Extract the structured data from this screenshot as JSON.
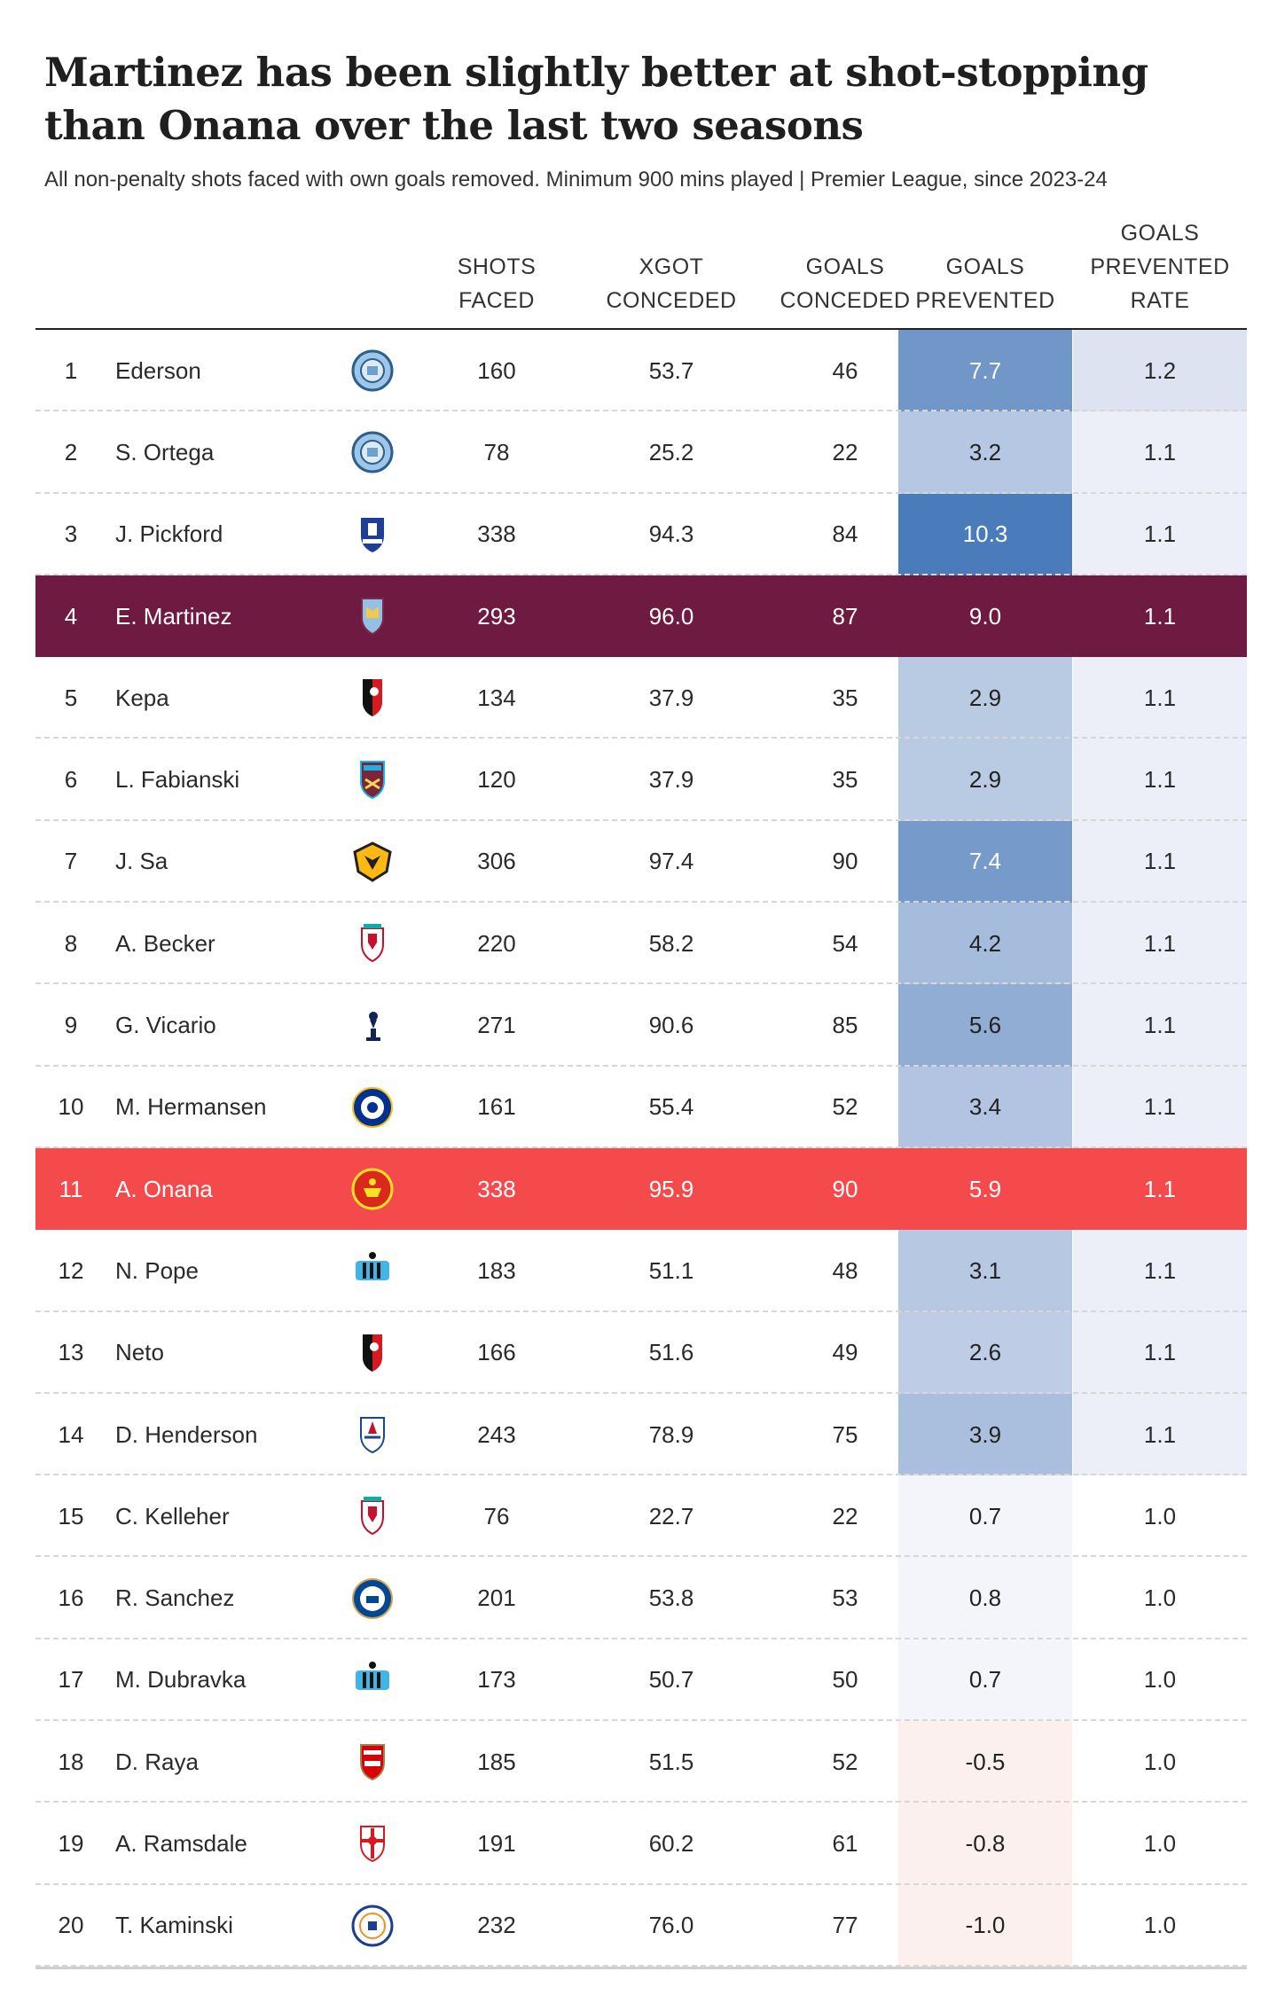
{
  "title": "Martinez has been slightly better at shot-stopping than Onana over the last two seasons",
  "subtitle": "All non-penalty shots faced with own goals removed. Minimum 900 mins played | Premier League, since 2023-24",
  "colors": {
    "martinez_highlight": "#6f1a40",
    "onana_highlight": "#f44a4c",
    "gp_positive_strong": "#4a7bba",
    "gp_negative_tint": "#fcf0ee",
    "rate_tint": "#e5e9f3"
  },
  "chart_data": {
    "type": "table",
    "title": "Martinez has been slightly better at shot-stopping than Onana over the last two seasons",
    "columns": [
      "",
      "",
      "",
      "SHOTS\nFACED",
      "XGOT\nCONCEDED",
      "GOALS\nCONCEDED",
      "GOALS\nPREVENTED",
      "GOALS\nPREVENTED\nRATE"
    ],
    "rows": [
      {
        "rank": "1",
        "name": "Ederson",
        "club": "Manchester City",
        "logo": "man-city",
        "shots": "160",
        "xgot": "53.7",
        "gc": "46",
        "gp": "7.7",
        "rate": "1.2",
        "highlight": ""
      },
      {
        "rank": "2",
        "name": "S. Ortega",
        "club": "Manchester City",
        "logo": "man-city",
        "shots": "78",
        "xgot": "25.2",
        "gc": "22",
        "gp": "3.2",
        "rate": "1.1",
        "highlight": ""
      },
      {
        "rank": "3",
        "name": "J. Pickford",
        "club": "Everton",
        "logo": "everton",
        "shots": "338",
        "xgot": "94.3",
        "gc": "84",
        "gp": "10.3",
        "rate": "1.1",
        "highlight": ""
      },
      {
        "rank": "4",
        "name": "E. Martinez",
        "club": "Aston Villa",
        "logo": "aston-villa",
        "shots": "293",
        "xgot": "96.0",
        "gc": "87",
        "gp": "9.0",
        "rate": "1.1",
        "highlight": "martinez"
      },
      {
        "rank": "5",
        "name": "Kepa",
        "club": "Bournemouth",
        "logo": "bournemouth",
        "shots": "134",
        "xgot": "37.9",
        "gc": "35",
        "gp": "2.9",
        "rate": "1.1",
        "highlight": ""
      },
      {
        "rank": "6",
        "name": "L. Fabianski",
        "club": "West Ham",
        "logo": "west-ham",
        "shots": "120",
        "xgot": "37.9",
        "gc": "35",
        "gp": "2.9",
        "rate": "1.1",
        "highlight": ""
      },
      {
        "rank": "7",
        "name": "J. Sa",
        "club": "Wolves",
        "logo": "wolves",
        "shots": "306",
        "xgot": "97.4",
        "gc": "90",
        "gp": "7.4",
        "rate": "1.1",
        "highlight": ""
      },
      {
        "rank": "8",
        "name": "A. Becker",
        "club": "Liverpool",
        "logo": "liverpool",
        "shots": "220",
        "xgot": "58.2",
        "gc": "54",
        "gp": "4.2",
        "rate": "1.1",
        "highlight": ""
      },
      {
        "rank": "9",
        "name": "G. Vicario",
        "club": "Tottenham",
        "logo": "tottenham",
        "shots": "271",
        "xgot": "90.6",
        "gc": "85",
        "gp": "5.6",
        "rate": "1.1",
        "highlight": ""
      },
      {
        "rank": "10",
        "name": "M. Hermansen",
        "club": "Leicester City",
        "logo": "leicester",
        "shots": "161",
        "xgot": "55.4",
        "gc": "52",
        "gp": "3.4",
        "rate": "1.1",
        "highlight": ""
      },
      {
        "rank": "11",
        "name": "A. Onana",
        "club": "Manchester United",
        "logo": "man-united",
        "shots": "338",
        "xgot": "95.9",
        "gc": "90",
        "gp": "5.9",
        "rate": "1.1",
        "highlight": "onana"
      },
      {
        "rank": "12",
        "name": "N. Pope",
        "club": "Newcastle",
        "logo": "newcastle",
        "shots": "183",
        "xgot": "51.1",
        "gc": "48",
        "gp": "3.1",
        "rate": "1.1",
        "highlight": ""
      },
      {
        "rank": "13",
        "name": "Neto",
        "club": "Bournemouth",
        "logo": "bournemouth",
        "shots": "166",
        "xgot": "51.6",
        "gc": "49",
        "gp": "2.6",
        "rate": "1.1",
        "highlight": ""
      },
      {
        "rank": "14",
        "name": "D. Henderson",
        "club": "Crystal Palace",
        "logo": "crystal-palace",
        "shots": "243",
        "xgot": "78.9",
        "gc": "75",
        "gp": "3.9",
        "rate": "1.1",
        "highlight": ""
      },
      {
        "rank": "15",
        "name": "C. Kelleher",
        "club": "Liverpool",
        "logo": "liverpool",
        "shots": "76",
        "xgot": "22.7",
        "gc": "22",
        "gp": "0.7",
        "rate": "1.0",
        "highlight": ""
      },
      {
        "rank": "16",
        "name": "R. Sanchez",
        "club": "Chelsea",
        "logo": "chelsea",
        "shots": "201",
        "xgot": "53.8",
        "gc": "53",
        "gp": "0.8",
        "rate": "1.0",
        "highlight": ""
      },
      {
        "rank": "17",
        "name": "M. Dubravka",
        "club": "Newcastle",
        "logo": "newcastle",
        "shots": "173",
        "xgot": "50.7",
        "gc": "50",
        "gp": "0.7",
        "rate": "1.0",
        "highlight": ""
      },
      {
        "rank": "18",
        "name": "D. Raya",
        "club": "Arsenal",
        "logo": "arsenal",
        "shots": "185",
        "xgot": "51.5",
        "gc": "52",
        "gp": "-0.5",
        "rate": "1.0",
        "highlight": ""
      },
      {
        "rank": "19",
        "name": "A. Ramsdale",
        "club": "Southampton",
        "logo": "southampton",
        "shots": "191",
        "xgot": "60.2",
        "gc": "61",
        "gp": "-0.8",
        "rate": "1.0",
        "highlight": ""
      },
      {
        "rank": "20",
        "name": "T. Kaminski",
        "club": "Luton Town",
        "logo": "luton",
        "shots": "232",
        "xgot": "76.0",
        "gc": "77",
        "gp": "-1.0",
        "rate": "1.0",
        "highlight": ""
      }
    ]
  }
}
